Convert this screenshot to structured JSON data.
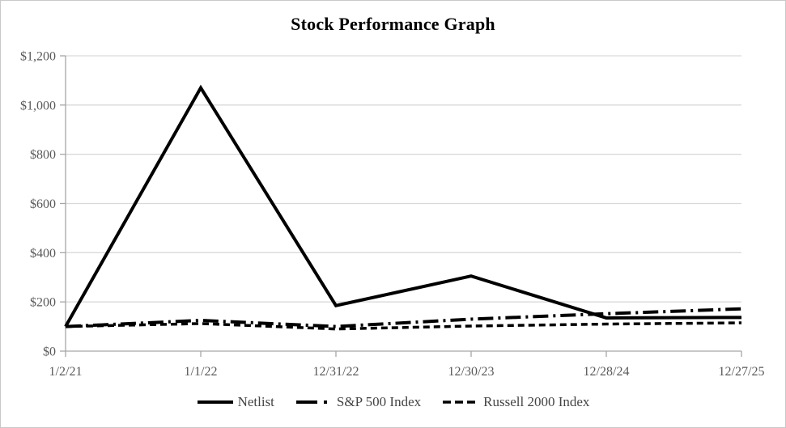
{
  "chart_data": {
    "type": "line",
    "title": "Stock Performance Graph",
    "xlabel": "",
    "ylabel": "",
    "categories": [
      "1/2/21",
      "1/1/22",
      "12/31/22",
      "12/30/23",
      "12/28/24",
      "12/27/25"
    ],
    "series": [
      {
        "name": "Netlist",
        "line_style": "solid",
        "values": [
          100,
          1070,
          185,
          305,
          135,
          137
        ]
      },
      {
        "name": "S&P 500 Index",
        "line_style": "long-dash-dot",
        "values": [
          100,
          125,
          100,
          130,
          152,
          172
        ]
      },
      {
        "name": "Russell 2000 Index",
        "line_style": "short-dash",
        "values": [
          100,
          112,
          90,
          102,
          110,
          115
        ]
      }
    ],
    "ylim": [
      0,
      1200
    ],
    "ytick_interval": 200,
    "ytick_labels": [
      "$0",
      "$200",
      "$400",
      "$600",
      "$800",
      "$1,000",
      "$1,200"
    ],
    "grid": "horizontal",
    "legend_position": "bottom",
    "colors": {
      "series_line": "#000000",
      "title_text": "#000000",
      "axis_text": "#595959",
      "legend_text": "#444444",
      "gridline": "#d9d9d9",
      "axis_line": "#a6a6a6"
    }
  }
}
